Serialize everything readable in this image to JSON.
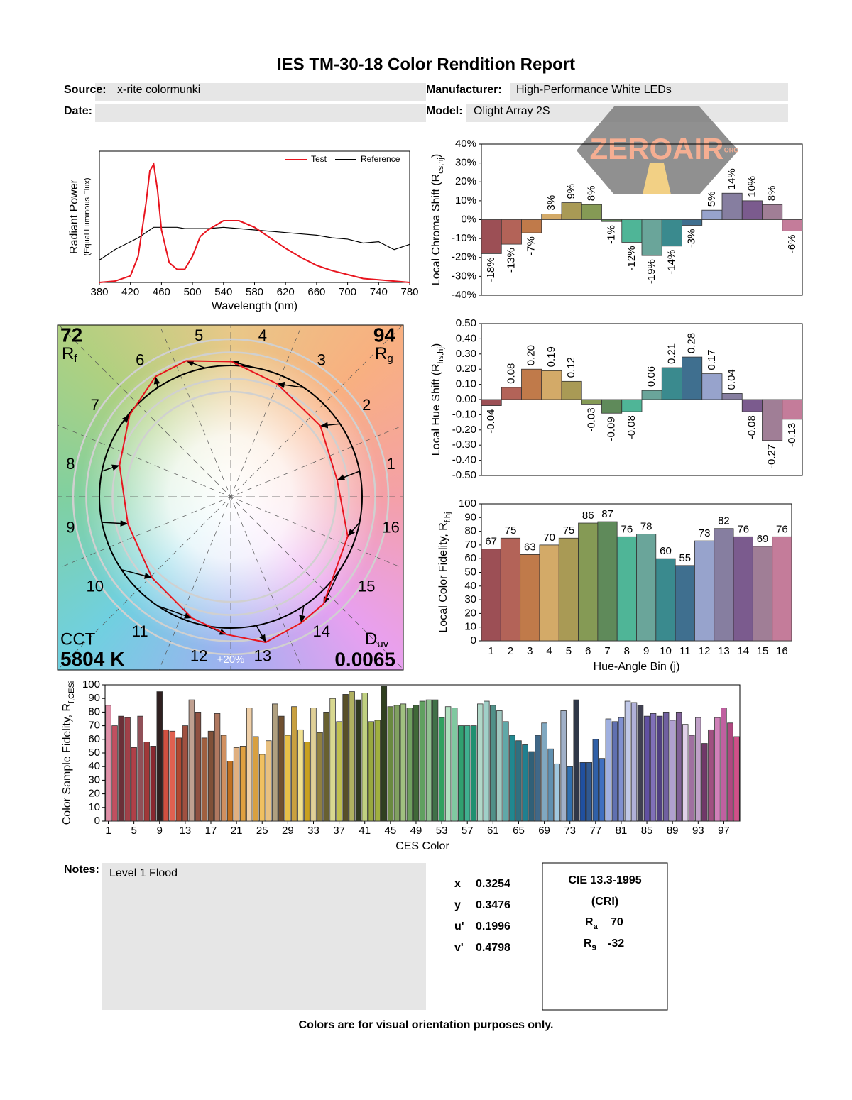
{
  "title": "IES TM-30-18 Color Rendition Report",
  "header": {
    "source_label": "Source:",
    "source": "x-rite colormunki",
    "manufacturer_label": "Manufacturer:",
    "manufacturer": "High-Performance White LEDs",
    "date_label": "Date:",
    "model_label": "Model:",
    "model": "Olight Array 2S"
  },
  "watermark": "ZEROAIR",
  "watermark_sub": "ORG",
  "chart_data": [
    {
      "type": "line",
      "xlabel": "Wavelength (nm)",
      "ylabel": "Radiant Power",
      "ylabel_note": "(Equal Luminous Flux)",
      "x": [
        380,
        400,
        420,
        430,
        440,
        445,
        450,
        455,
        460,
        470,
        480,
        490,
        500,
        510,
        520,
        540,
        560,
        580,
        600,
        620,
        640,
        660,
        680,
        700,
        720,
        740,
        760,
        780
      ],
      "xlim": [
        380,
        780
      ],
      "xticks": [
        380,
        420,
        460,
        500,
        540,
        580,
        620,
        660,
        700,
        740,
        780
      ],
      "ylim": [
        0,
        1
      ],
      "series": [
        {
          "name": "Test",
          "color": "#e8141e",
          "values": [
            0,
            0.01,
            0.05,
            0.2,
            0.6,
            0.85,
            0.9,
            0.7,
            0.4,
            0.15,
            0.1,
            0.1,
            0.2,
            0.35,
            0.4,
            0.47,
            0.47,
            0.42,
            0.34,
            0.26,
            0.19,
            0.13,
            0.09,
            0.06,
            0.03,
            0.02,
            0.01,
            0
          ]
        },
        {
          "name": "Reference",
          "color": "#000000",
          "values": [
            0.17,
            0.25,
            0.31,
            0.34,
            0.38,
            0.4,
            0.42,
            0.42,
            0.42,
            0.42,
            0.42,
            0.41,
            0.41,
            0.41,
            0.41,
            0.42,
            0.41,
            0.4,
            0.39,
            0.38,
            0.37,
            0.36,
            0.34,
            0.33,
            0.3,
            0.31,
            0.25,
            0.29
          ]
        }
      ]
    },
    {
      "type": "vector",
      "bins": [
        1,
        2,
        3,
        4,
        5,
        6,
        7,
        8,
        9,
        10,
        11,
        12,
        13,
        14,
        15,
        16
      ],
      "rf": 72,
      "rf_symbol": "R",
      "rf_sub": "f",
      "rg": 94,
      "rg_symbol": "R",
      "rg_sub": "g",
      "cct_label": "CCT",
      "cct": 5804,
      "cct_unit": "K",
      "duv_symbol": "D",
      "duv_sub": "uv",
      "duv": 0.0065,
      "scale_label": "+20%"
    },
    {
      "type": "bar",
      "ylabel": "Local Chroma Shift (R",
      "ylabel_sub": "cs,hj",
      "ylabel_end": ")",
      "values": [
        -18,
        -13,
        -7,
        3,
        9,
        8,
        -1,
        -12,
        -19,
        -14,
        -3,
        5,
        14,
        10,
        8,
        -6
      ],
      "value_labels": [
        "-18%",
        "-13%",
        "-7%",
        "3%",
        "9%",
        "8%",
        "-1%",
        "-12%",
        "-19%",
        "-14%",
        "-3%",
        "5%",
        "14%",
        "10%",
        "8%",
        "-6%"
      ],
      "ylim": [
        -40,
        40
      ],
      "yticks": [
        {
          "value": -40,
          "label": "-40%"
        },
        {
          "value": -30,
          "label": "-30%"
        },
        {
          "value": -20,
          "label": "-20%"
        },
        {
          "value": -10,
          "label": "-10%"
        },
        {
          "value": 0,
          "label": "0%"
        },
        {
          "value": 10,
          "label": "10%"
        },
        {
          "value": 20,
          "label": "20%"
        },
        {
          "value": 30,
          "label": "30%"
        },
        {
          "value": 40,
          "label": "40%"
        }
      ],
      "colors": [
        "#9c4f55",
        "#b36358",
        "#c07a4a",
        "#d3aa68",
        "#a99a55",
        "#859a55",
        "#5f8a5a",
        "#4fb597",
        "#6aa59a",
        "#3a8a8e",
        "#3f6f8f",
        "#97a3cc",
        "#867ea0",
        "#7b5b8e",
        "#a07e96",
        "#c47c9a"
      ]
    },
    {
      "type": "bar",
      "ylabel": "Local Hue Shift (R",
      "ylabel_sub": "hs,hj",
      "ylabel_end": ")",
      "values": [
        -0.04,
        0.08,
        0.2,
        0.19,
        0.12,
        -0.03,
        -0.09,
        -0.08,
        0.06,
        0.21,
        0.28,
        0.17,
        0.04,
        -0.08,
        -0.27,
        -0.13
      ],
      "value_labels": [
        "-0.04",
        "0.08",
        "0.20",
        "0.19",
        "0.12",
        "-0.03",
        "-0.09",
        "-0.08",
        "0.06",
        "0.21",
        "0.28",
        "0.17",
        "0.04",
        "-0.08",
        "-0.27",
        "-0.13"
      ],
      "ylim": [
        -0.5,
        0.5
      ],
      "yticks": [
        {
          "value": -0.5,
          "label": "-0.50"
        },
        {
          "value": -0.4,
          "label": "-0.40"
        },
        {
          "value": -0.3,
          "label": "-0.30"
        },
        {
          "value": -0.2,
          "label": "-0.20"
        },
        {
          "value": -0.1,
          "label": "-0.10"
        },
        {
          "value": 0,
          "label": "0.00"
        },
        {
          "value": 0.1,
          "label": "0.10"
        },
        {
          "value": 0.2,
          "label": "0.20"
        },
        {
          "value": 0.3,
          "label": "0.30"
        },
        {
          "value": 0.4,
          "label": "0.40"
        },
        {
          "value": 0.5,
          "label": "0.50"
        }
      ],
      "colors": [
        "#9c4f55",
        "#b36358",
        "#c07a4a",
        "#d3aa68",
        "#a99a55",
        "#859a55",
        "#5f8a5a",
        "#4fb597",
        "#6aa59a",
        "#3a8a8e",
        "#3f6f8f",
        "#97a3cc",
        "#867ea0",
        "#7b5b8e",
        "#a07e96",
        "#c47c9a"
      ]
    },
    {
      "type": "bar",
      "ylabel": "Local Color Fidelity, R",
      "ylabel_sub": "f,hj",
      "xlabel": "Hue-Angle Bin (j)",
      "categories": [
        1,
        2,
        3,
        4,
        5,
        6,
        7,
        8,
        9,
        10,
        11,
        12,
        13,
        14,
        15,
        16
      ],
      "values": [
        67,
        75,
        63,
        70,
        75,
        86,
        87,
        76,
        78,
        60,
        55,
        73,
        82,
        76,
        69,
        76
      ],
      "ylim": [
        0,
        100
      ],
      "yticks": [
        0,
        10,
        20,
        30,
        40,
        50,
        60,
        70,
        80,
        90,
        100
      ],
      "colors": [
        "#9c4f55",
        "#b36358",
        "#c07a4a",
        "#d3aa68",
        "#a99a55",
        "#859a55",
        "#5f8a5a",
        "#4fb597",
        "#6aa59a",
        "#3a8a8e",
        "#3f6f8f",
        "#97a3cc",
        "#867ea0",
        "#7b5b8e",
        "#a07e96",
        "#c47c9a"
      ]
    },
    {
      "type": "bar",
      "ylabel": "Color Sample Fidelity, R",
      "ylabel_sub": "f,CESi",
      "xlabel": "CES Color",
      "x": [
        1,
        2,
        3,
        4,
        5,
        6,
        7,
        8,
        9,
        10,
        11,
        12,
        13,
        14,
        15,
        16,
        17,
        18,
        19,
        20,
        21,
        22,
        23,
        24,
        25,
        26,
        27,
        28,
        29,
        30,
        31,
        32,
        33,
        34,
        35,
        36,
        37,
        38,
        39,
        40,
        41,
        42,
        43,
        44,
        45,
        46,
        47,
        48,
        49,
        50,
        51,
        52,
        53,
        54,
        55,
        56,
        57,
        58,
        59,
        60,
        61,
        62,
        63,
        64,
        65,
        66,
        67,
        68,
        69,
        70,
        71,
        72,
        73,
        74,
        75,
        76,
        77,
        78,
        79,
        80,
        81,
        82,
        83,
        84,
        85,
        86,
        87,
        88,
        89,
        90,
        91,
        92,
        93,
        94,
        95,
        96,
        97,
        98,
        99
      ],
      "xlim": [
        0.5,
        99.5
      ],
      "xticks": [
        1,
        5,
        9,
        13,
        17,
        21,
        25,
        29,
        33,
        37,
        41,
        45,
        49,
        53,
        57,
        61,
        65,
        69,
        73,
        77,
        81,
        85,
        89,
        93,
        97
      ],
      "values": [
        85,
        70,
        77,
        76,
        54,
        77,
        58,
        55,
        95,
        67,
        66,
        61,
        70,
        89,
        80,
        61,
        66,
        79,
        63,
        44,
        54,
        55,
        83,
        62,
        49,
        59,
        86,
        77,
        63,
        84,
        67,
        58,
        83,
        65,
        80,
        90,
        73,
        93,
        95,
        89,
        94,
        73,
        74,
        99,
        84,
        85,
        86,
        83,
        85,
        88,
        89,
        89,
        76,
        84,
        83,
        70,
        70,
        70,
        86,
        88,
        85,
        81,
        73,
        63,
        59,
        56,
        51,
        63,
        72,
        53,
        42,
        81,
        40,
        89,
        43,
        43,
        60,
        46,
        75,
        73,
        76,
        88,
        87,
        85,
        77,
        79,
        77,
        80,
        74,
        80,
        71,
        63,
        76,
        57,
        67,
        76,
        83,
        72,
        62
      ],
      "ylim": [
        0,
        100
      ],
      "yticks": [
        0,
        10,
        20,
        30,
        40,
        50,
        60,
        70,
        80,
        90,
        100
      ],
      "colors": [
        "#e090a8",
        "#c05060",
        "#6a3038",
        "#a04048",
        "#b04048",
        "#905058",
        "#a03838",
        "#8a2830",
        "#302020",
        "#d05040",
        "#e06050",
        "#b04830",
        "#a05040",
        "#c0a090",
        "#905040",
        "#a06040",
        "#805038",
        "#b07860",
        "#d09060",
        "#c07020",
        "#e0b080",
        "#e0a040",
        "#f0d0a8",
        "#d8a040",
        "#f0c060",
        "#e8c080",
        "#b0a080",
        "#705030",
        "#e8c048",
        "#c8a040",
        "#f0e090",
        "#c8a020",
        "#e0d098",
        "#908040",
        "#686030",
        "#d8d890",
        "#c0c050",
        "#585028",
        "#b0b060",
        "#303820",
        "#c0d080",
        "#98a840",
        "#a0b040",
        "#304020",
        "#6a8a40",
        "#80a060",
        "#a0c080",
        "#70a060",
        "#406838",
        "#60a060",
        "#90c090",
        "#407048",
        "#30a060",
        "#b0e0c0",
        "#80c8a0",
        "#30a070",
        "#40b090",
        "#209070",
        "#b0d8c8",
        "#a0d0c8",
        "#509088",
        "#a0c8c0",
        "#60a8a8",
        "#208890",
        "#307080",
        "#208090",
        "#306078",
        "#406888",
        "#80a8c0",
        "#6090b0",
        "#a0c8e0",
        "#a0b0c8",
        "#3070b0",
        "#303848",
        "#2050a0",
        "#305890",
        "#3060a8",
        "#4070c0",
        "#a0b0e0",
        "#6070b0",
        "#8090d0",
        "#c0c8e8",
        "#b0b0d8",
        "#404050",
        "#6050a0",
        "#8070b8",
        "#504080",
        "#7060a0",
        "#b0a0d0",
        "#806098",
        "#e0d0e8",
        "#a070a0",
        "#c0a0c8",
        "#703868",
        "#a05080",
        "#d080b8",
        "#c060a0",
        "#b04880",
        "#d05088"
      ]
    }
  ],
  "notes": {
    "label": "Notes:",
    "text": "Level 1 Flood"
  },
  "chromaticity": [
    {
      "label": "x",
      "value": 0.3254
    },
    {
      "label": "y",
      "value": 0.3476
    },
    {
      "label": "u'",
      "value": 0.1996
    },
    {
      "label": "v'",
      "value": 0.4798
    }
  ],
  "cri": {
    "title": "CIE 13.3-1995",
    "subtitle": "(CRI)",
    "ra_symbol": "R",
    "ra_sub": "a",
    "ra": 70,
    "r9_symbol": "R",
    "r9_sub": "9",
    "r9": -32
  },
  "footer": "Colors are for visual orientation purposes only."
}
